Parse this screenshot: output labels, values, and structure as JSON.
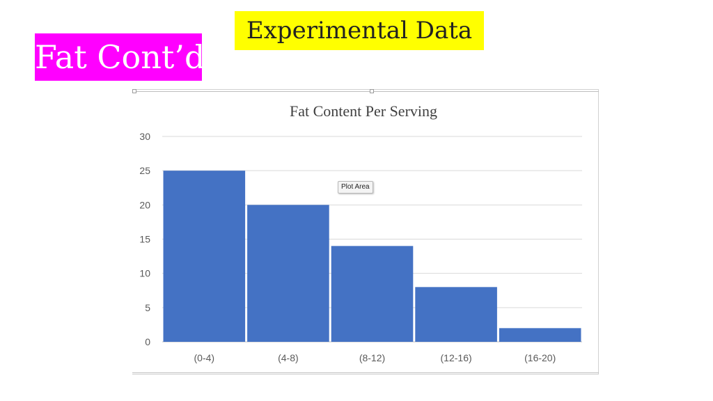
{
  "heading": "Experimental Data",
  "section_label": "Fat Cont’d",
  "tooltip": "Plot Area",
  "colors": {
    "heading_bg": "#ffff00",
    "label_bg": "#ff00ff",
    "bar": "#4472c4",
    "gridline": "#d9d9d9"
  },
  "chart_data": {
    "type": "bar",
    "title": "Fat Content Per Serving",
    "xlabel": "",
    "ylabel": "",
    "categories": [
      "(0-4)",
      "(4-8)",
      "(8-12)",
      "(12-16)",
      "(16-20)"
    ],
    "values": [
      25,
      20,
      14,
      8,
      2
    ],
    "ylim": [
      0,
      30
    ],
    "yticks": [
      "0",
      "5",
      "10",
      "15",
      "20",
      "25",
      "30"
    ],
    "grid": true,
    "legend": "none"
  }
}
